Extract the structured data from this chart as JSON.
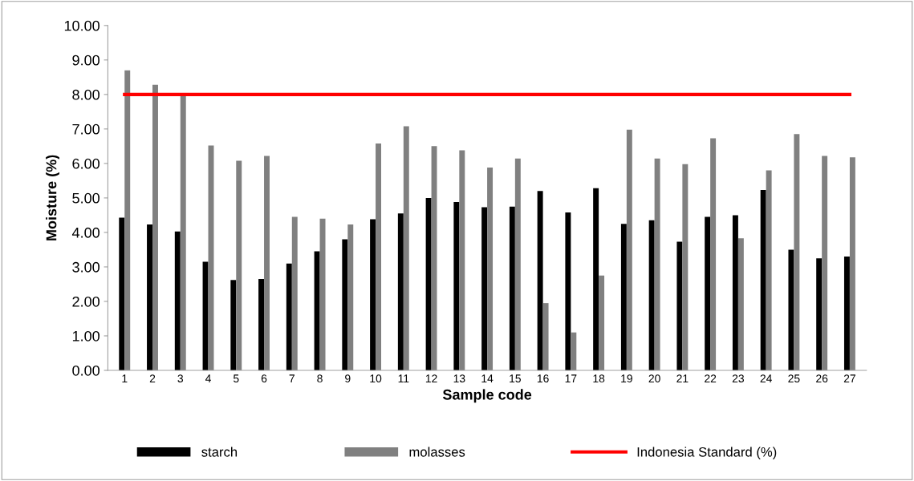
{
  "chart_data": {
    "type": "bar",
    "xlabel": "Sample code",
    "ylabel": "Moisture (%)",
    "categories": [
      "1",
      "2",
      "3",
      "4",
      "5",
      "6",
      "7",
      "8",
      "9",
      "10",
      "11",
      "12",
      "13",
      "14",
      "15",
      "16",
      "17",
      "18",
      "19",
      "20",
      "21",
      "22",
      "23",
      "24",
      "25",
      "26",
      "27"
    ],
    "series": [
      {
        "name": "starch",
        "color": "#000000",
        "values": [
          4.43,
          4.23,
          4.03,
          3.15,
          2.62,
          2.65,
          3.1,
          3.45,
          3.8,
          4.38,
          4.55,
          5.0,
          4.88,
          4.73,
          4.75,
          5.2,
          4.58,
          5.28,
          4.25,
          4.35,
          3.73,
          4.45,
          4.5,
          5.23,
          3.5,
          3.25,
          3.3
        ]
      },
      {
        "name": "molasses",
        "color": "#808080",
        "values": [
          8.7,
          8.28,
          7.98,
          6.52,
          6.08,
          6.22,
          4.45,
          4.4,
          4.23,
          6.58,
          7.08,
          6.5,
          6.38,
          5.88,
          6.14,
          1.95,
          1.1,
          2.75,
          6.98,
          6.14,
          5.98,
          6.73,
          3.83,
          5.8,
          6.85,
          6.22,
          6.18
        ]
      },
      {
        "name": "Indonesia Standard (%)",
        "type": "line",
        "color": "#ff0000",
        "values": [
          8,
          8,
          8,
          8,
          8,
          8,
          8,
          8,
          8,
          8,
          8,
          8,
          8,
          8,
          8,
          8,
          8,
          8,
          8,
          8,
          8,
          8,
          8,
          8,
          8,
          8,
          8
        ]
      }
    ],
    "ylim": [
      0,
      10
    ],
    "yticks": [
      {
        "value": 0,
        "label": "0.00"
      },
      {
        "value": 1,
        "label": "1.00"
      },
      {
        "value": 2,
        "label": "2.00"
      },
      {
        "value": 3,
        "label": "3.00"
      },
      {
        "value": 4,
        "label": "4.00"
      },
      {
        "value": 5,
        "label": "5.00"
      },
      {
        "value": 6,
        "label": "6.00"
      },
      {
        "value": 7,
        "label": "7.00"
      },
      {
        "value": 8,
        "label": "8.00"
      },
      {
        "value": 9,
        "label": "9.00"
      },
      {
        "value": 10,
        "label": "10.00"
      }
    ],
    "grid": false,
    "legend": "bottom",
    "marker": "none"
  }
}
